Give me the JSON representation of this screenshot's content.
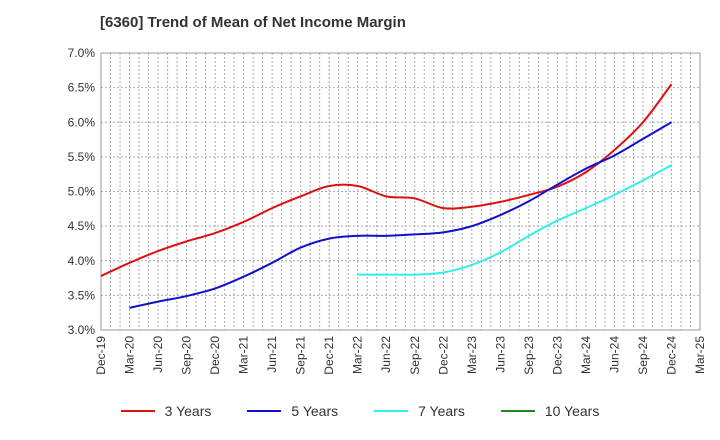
{
  "chart_data": {
    "type": "line",
    "title": "[6360]  Trend of Mean of Net Income Margin",
    "xlabel": "",
    "ylabel": "",
    "x_ticks": [
      "Dec-19",
      "Mar-20",
      "Jun-20",
      "Sep-20",
      "Dec-20",
      "Mar-21",
      "Jun-21",
      "Sep-21",
      "Dec-21",
      "Mar-22",
      "Jun-22",
      "Sep-22",
      "Dec-22",
      "Mar-23",
      "Jun-23",
      "Sep-23",
      "Dec-23",
      "Mar-24",
      "Jun-24",
      "Sep-24",
      "Dec-24",
      "Mar-25"
    ],
    "y_ticks": [
      "3.0%",
      "3.5%",
      "4.0%",
      "4.5%",
      "5.0%",
      "5.5%",
      "6.0%",
      "6.5%",
      "7.0%"
    ],
    "ylim": [
      3.0,
      7.0
    ],
    "grid": true,
    "legend_position": "bottom",
    "series": [
      {
        "name": "3 Years",
        "color": "#dd1111",
        "x": [
          "Dec-19",
          "Mar-20",
          "Jun-20",
          "Sep-20",
          "Dec-20",
          "Mar-21",
          "Jun-21",
          "Sep-21",
          "Dec-21",
          "Mar-22",
          "Jun-22",
          "Sep-22",
          "Dec-22",
          "Mar-23",
          "Jun-23",
          "Sep-23",
          "Dec-23",
          "Mar-24",
          "Jun-24",
          "Sep-24",
          "Dec-24"
        ],
        "values": [
          3.78,
          3.97,
          4.14,
          4.28,
          4.4,
          4.56,
          4.76,
          4.93,
          5.08,
          5.08,
          4.93,
          4.9,
          4.76,
          4.78,
          4.85,
          4.95,
          5.07,
          5.28,
          5.6,
          6.0,
          6.55
        ]
      },
      {
        "name": "5 Years",
        "color": "#1111cc",
        "x": [
          "Mar-20",
          "Jun-20",
          "Sep-20",
          "Dec-20",
          "Mar-21",
          "Jun-21",
          "Sep-21",
          "Dec-21",
          "Mar-22",
          "Jun-22",
          "Sep-22",
          "Dec-22",
          "Mar-23",
          "Jun-23",
          "Sep-23",
          "Dec-23",
          "Mar-24",
          "Jun-24",
          "Sep-24",
          "Dec-24"
        ],
        "values": [
          3.32,
          3.41,
          3.49,
          3.6,
          3.77,
          3.97,
          4.19,
          4.32,
          4.36,
          4.36,
          4.38,
          4.41,
          4.5,
          4.66,
          4.86,
          5.1,
          5.33,
          5.52,
          5.76,
          6.0
        ]
      },
      {
        "name": "7 Years",
        "color": "#33eeee",
        "x": [
          "Mar-22",
          "Jun-22",
          "Sep-22",
          "Dec-22",
          "Mar-23",
          "Jun-23",
          "Sep-23",
          "Dec-23",
          "Mar-24",
          "Jun-24",
          "Sep-24",
          "Dec-24"
        ],
        "values": [
          3.8,
          3.8,
          3.8,
          3.83,
          3.94,
          4.12,
          4.36,
          4.58,
          4.76,
          4.95,
          5.16,
          5.38
        ]
      },
      {
        "name": "10 Years",
        "color": "#228822",
        "x": [],
        "values": []
      }
    ]
  }
}
